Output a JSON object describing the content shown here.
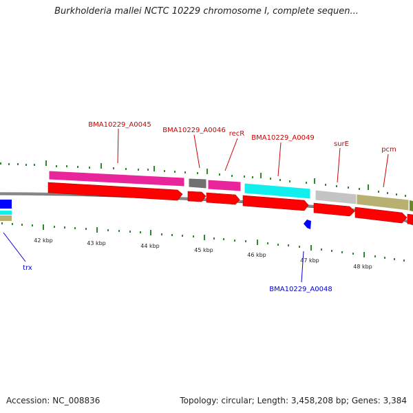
{
  "title": "Burkholderia mallei NCTC 10229 chromosome I, complete sequen...",
  "footer": {
    "accession": "Accession: NC_008836",
    "topology": "Topology: circular; Length: 3,458,208 bp; Genes: 3,384"
  },
  "scale_labels": [
    "42 kbp",
    "43 kbp",
    "44 kbp",
    "45 kbp",
    "46 kbp",
    "47 kbp",
    "48 kbp"
  ],
  "gene_labels": {
    "a0045": "BMA10229_A0045",
    "a0046": "BMA10229_A0046",
    "recR": "recR",
    "a0049": "BMA10229_A0049",
    "surE": "surE",
    "pcm": "pcm",
    "trx": "trx",
    "a0048": "BMA10229_A0048"
  },
  "colors": {
    "forward_label": "#cc0000",
    "reverse_label": "#0000cc",
    "cds": "#ff0000",
    "magenta": "#e8259a",
    "gray": "#707070",
    "cyan": "#11eeee",
    "light_gray": "#c4c4c4",
    "olive": "#b8b070",
    "dark_olive": "#6a8a2a",
    "blue": "#0000ff",
    "tick_green": "#2a8a2a",
    "backbone": "#888888"
  }
}
